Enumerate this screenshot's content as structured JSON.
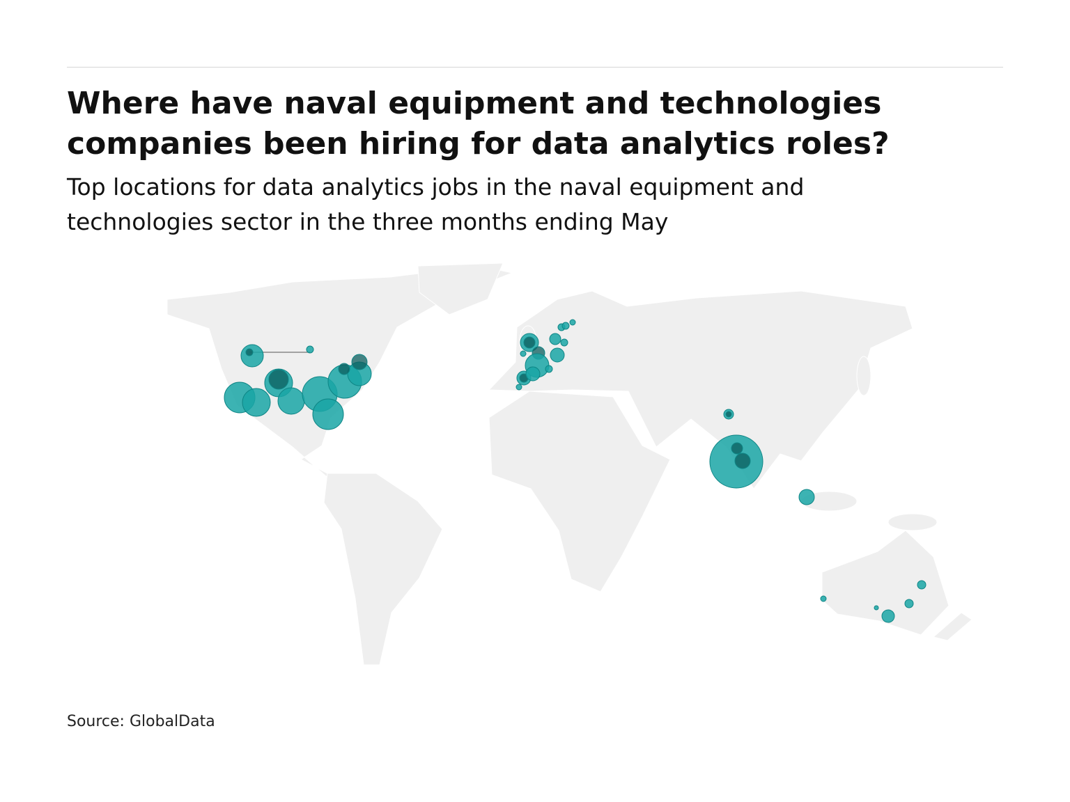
{
  "header": {
    "title": "Where have naval equipment and technologies companies been hiring for data analytics roles?",
    "subtitle": "Top locations for data analytics jobs in the naval equipment and technologies sector in the three months ending May"
  },
  "footer": {
    "source": "Source: GlobalData"
  }
}
